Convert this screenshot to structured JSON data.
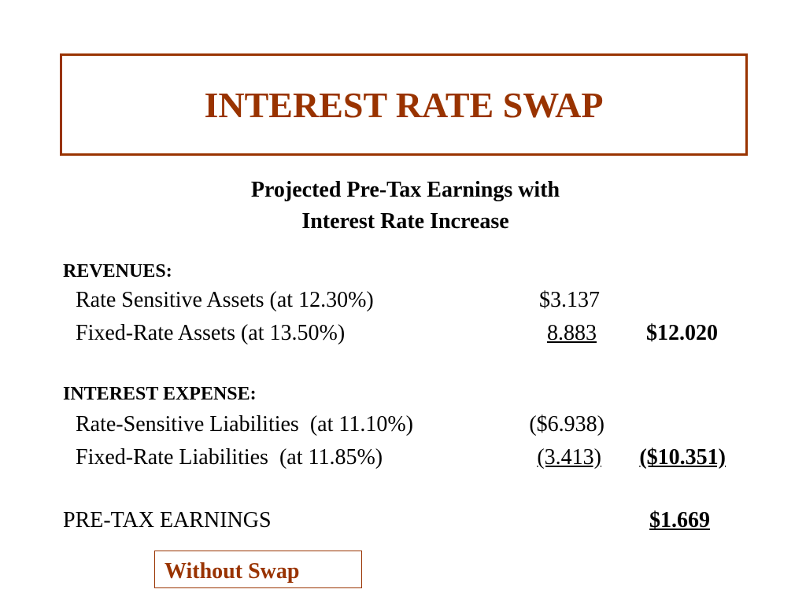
{
  "header": {
    "title": "INTEREST RATE SWAP"
  },
  "subtitle": [
    "Projected Pre-Tax Earnings with",
    "Interest Rate Increase"
  ],
  "revenues": {
    "heading": "REVENUES:",
    "rows": [
      {
        "label": "Rate Sensitive Assets (at 12.30%)",
        "amount": "$3.137",
        "total": null
      },
      {
        "label": "Fixed-Rate Assets (at 13.50%)",
        "amount": "8.883",
        "total": "$12.020"
      }
    ]
  },
  "expense": {
    "heading": "INTEREST EXPENSE:",
    "rows": [
      {
        "label": "Rate-Sensitive Liabilities  (at 11.10%)",
        "amount": "($6.938)",
        "total": null
      },
      {
        "label": "Fixed-Rate Liabilities  (at 11.85%)",
        "amount": "(3.413)",
        "total": "($10.351)"
      }
    ]
  },
  "earnings": {
    "label": "PRE-TAX EARNINGS",
    "total": "$1.669"
  },
  "note": "Without Swap"
}
